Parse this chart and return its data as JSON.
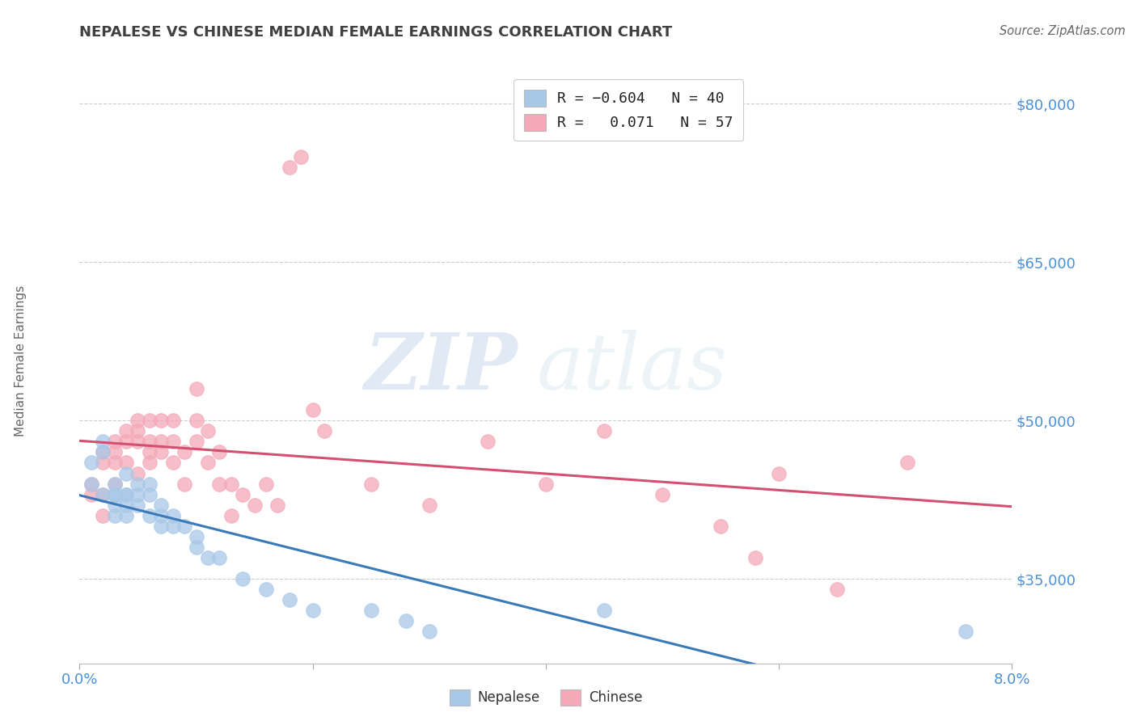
{
  "title": "NEPALESE VS CHINESE MEDIAN FEMALE EARNINGS CORRELATION CHART",
  "source": "Source: ZipAtlas.com",
  "ylabel": "Median Female Earnings",
  "xlim": [
    0.0,
    0.08
  ],
  "ylim": [
    27000,
    83000
  ],
  "yticks": [
    35000,
    50000,
    65000,
    80000
  ],
  "ytick_labels": [
    "$35,000",
    "$50,000",
    "$65,000",
    "$80,000"
  ],
  "xticks": [
    0.0,
    0.02,
    0.04,
    0.06,
    0.08
  ],
  "xtick_labels": [
    "0.0%",
    "",
    "",
    "",
    "8.0%"
  ],
  "nepalese_color": "#a8c8e8",
  "chinese_color": "#f4a8b8",
  "trend_nepalese_color": "#3a7ab8",
  "trend_chinese_color": "#d45070",
  "background_color": "#ffffff",
  "grid_color": "#cccccc",
  "watermark_zip": "ZIP",
  "watermark_atlas": "atlas",
  "title_color": "#404040",
  "source_color": "#666666",
  "tick_color": "#4a90d9",
  "ylabel_color": "#666666",
  "nepalese_x": [
    0.001,
    0.001,
    0.002,
    0.002,
    0.002,
    0.003,
    0.003,
    0.003,
    0.003,
    0.003,
    0.004,
    0.004,
    0.004,
    0.004,
    0.004,
    0.005,
    0.005,
    0.005,
    0.006,
    0.006,
    0.006,
    0.007,
    0.007,
    0.007,
    0.008,
    0.008,
    0.009,
    0.01,
    0.01,
    0.011,
    0.012,
    0.014,
    0.016,
    0.018,
    0.02,
    0.025,
    0.028,
    0.03,
    0.045,
    0.076
  ],
  "nepalese_y": [
    44000,
    46000,
    43000,
    47000,
    48000,
    43000,
    42000,
    44000,
    41000,
    43000,
    43000,
    45000,
    42000,
    43000,
    41000,
    44000,
    42000,
    43000,
    44000,
    41000,
    43000,
    42000,
    40000,
    41000,
    41000,
    40000,
    40000,
    39000,
    38000,
    37000,
    37000,
    35000,
    34000,
    33000,
    32000,
    32000,
    31000,
    30000,
    32000,
    30000
  ],
  "chinese_x": [
    0.001,
    0.001,
    0.002,
    0.002,
    0.002,
    0.002,
    0.003,
    0.003,
    0.003,
    0.003,
    0.004,
    0.004,
    0.004,
    0.005,
    0.005,
    0.005,
    0.005,
    0.006,
    0.006,
    0.006,
    0.006,
    0.007,
    0.007,
    0.007,
    0.008,
    0.008,
    0.008,
    0.009,
    0.009,
    0.01,
    0.01,
    0.01,
    0.011,
    0.011,
    0.012,
    0.012,
    0.013,
    0.013,
    0.014,
    0.015,
    0.016,
    0.017,
    0.018,
    0.019,
    0.02,
    0.021,
    0.025,
    0.03,
    0.035,
    0.04,
    0.045,
    0.05,
    0.055,
    0.058,
    0.06,
    0.065,
    0.071
  ],
  "chinese_y": [
    43000,
    44000,
    41000,
    46000,
    43000,
    47000,
    46000,
    48000,
    44000,
    47000,
    48000,
    49000,
    46000,
    50000,
    48000,
    45000,
    49000,
    48000,
    50000,
    46000,
    47000,
    48000,
    50000,
    47000,
    48000,
    46000,
    50000,
    47000,
    44000,
    50000,
    48000,
    53000,
    49000,
    46000,
    44000,
    47000,
    44000,
    41000,
    43000,
    42000,
    44000,
    42000,
    74000,
    75000,
    51000,
    49000,
    44000,
    42000,
    48000,
    44000,
    49000,
    43000,
    40000,
    37000,
    45000,
    34000,
    46000
  ]
}
